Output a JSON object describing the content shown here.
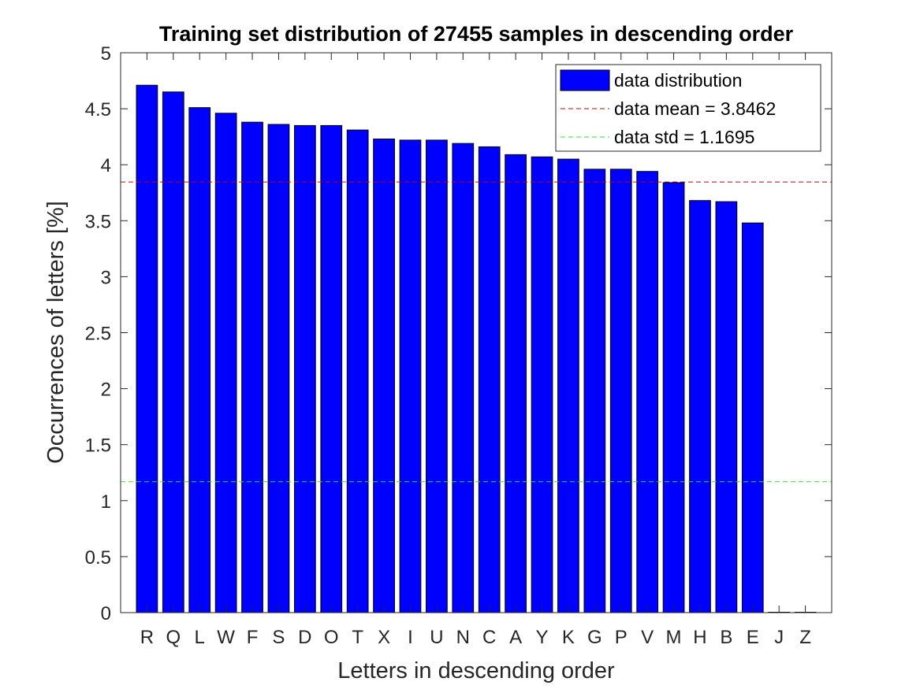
{
  "chart_data": {
    "type": "bar",
    "title": "Training set distribution of 27455 samples in descending order",
    "xlabel": "Letters in descending order",
    "ylabel": "Occurrences of letters [%]",
    "ylim": [
      0,
      5
    ],
    "yticks": [
      0,
      0.5,
      1,
      1.5,
      2,
      2.5,
      3,
      3.5,
      4,
      4.5,
      5
    ],
    "categories": [
      "R",
      "Q",
      "L",
      "W",
      "F",
      "S",
      "D",
      "O",
      "T",
      "X",
      "I",
      "U",
      "N",
      "C",
      "A",
      "Y",
      "K",
      "G",
      "P",
      "V",
      "M",
      "H",
      "B",
      "E",
      "J",
      "Z"
    ],
    "series": [
      {
        "name": "data distribution",
        "color": "#0000ff",
        "values": [
          4.71,
          4.65,
          4.51,
          4.46,
          4.38,
          4.36,
          4.35,
          4.35,
          4.31,
          4.23,
          4.22,
          4.22,
          4.19,
          4.16,
          4.09,
          4.07,
          4.05,
          3.96,
          3.96,
          3.94,
          3.84,
          3.68,
          3.67,
          3.48,
          0,
          0
        ]
      }
    ],
    "reference_lines": [
      {
        "label": "data mean = 3.8462",
        "value": 3.8462,
        "color": "#cc0000",
        "style": "dashed"
      },
      {
        "label": "data std = 1.1695",
        "value": 1.1695,
        "color": "#33dd33",
        "style": "dashed"
      }
    ],
    "legend_placement": "top-right",
    "grid": false
  }
}
